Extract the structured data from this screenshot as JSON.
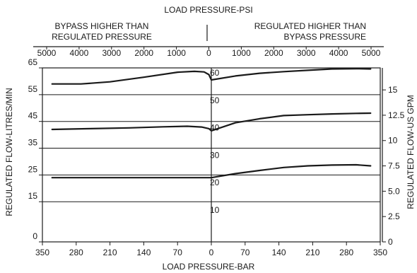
{
  "chart_data": {
    "type": "line",
    "title": "LOAD PRESSURE-PSI",
    "xlabel": "LOAD PRESSURE-BAR",
    "ylabel_left": "REGULATED FLOW-LITRES/MIN",
    "ylabel_right": "REGULATED FLOW-US GPM",
    "region_left": [
      "BYPASS HIGHER THAN",
      "REGULATED PRESSURE"
    ],
    "region_right": [
      "REGULATED HIGHER THAN",
      "BYPASS PRESSURE"
    ],
    "x_direction_note": "negative x = bypass higher than regulated (left); positive x = regulated higher than bypass (right)",
    "xlim_bar": [
      -350,
      350
    ],
    "x_ticks_bar": [
      "350",
      "280",
      "210",
      "140",
      "70",
      "0",
      "70",
      "140",
      "210",
      "280",
      "350"
    ],
    "x_ticks_psi": [
      "5000",
      "4000",
      "3000",
      "2000",
      "1000",
      "0",
      "1000",
      "2000",
      "3000",
      "4000",
      "5000"
    ],
    "ylim_lpm": [
      0,
      65
    ],
    "y_ticks_left": [
      "0",
      "15",
      "25",
      "35",
      "45",
      "55",
      "65"
    ],
    "y_ticks_right": [
      "0",
      "2.5",
      "5.0",
      "7.5",
      "10",
      "12.5",
      "15"
    ],
    "curve_labels": [
      "60",
      "50",
      "40",
      "30",
      "20",
      "10"
    ],
    "grid": true,
    "series": [
      {
        "x": [
          -330,
          -270,
          -210,
          -140,
          -70,
          -35,
          -15,
          -5,
          0,
          50,
          100,
          150,
          200,
          250,
          300,
          330
        ],
        "y": [
          59,
          59,
          59.8,
          61.5,
          63.4,
          63.7,
          63.5,
          62.5,
          60.5,
          62,
          63,
          63.6,
          64.1,
          64.6,
          64.7,
          64.6
        ]
      },
      {
        "x": [
          -330,
          -250,
          -170,
          -100,
          -50,
          -20,
          -5,
          0,
          50,
          100,
          150,
          200,
          250,
          300,
          330
        ],
        "y": [
          42,
          42.3,
          42.6,
          43,
          43.2,
          42.9,
          42.3,
          41.5,
          44.5,
          46,
          47.2,
          47.5,
          47.8,
          48,
          48.1
        ]
      },
      {
        "x": [
          -330,
          -250,
          -150,
          -50,
          0,
          50,
          100,
          150,
          200,
          250,
          300,
          330
        ],
        "y": [
          24,
          24,
          24,
          24,
          24,
          25.5,
          26.7,
          27.8,
          28.4,
          28.7,
          28.8,
          28.4
        ]
      }
    ]
  }
}
